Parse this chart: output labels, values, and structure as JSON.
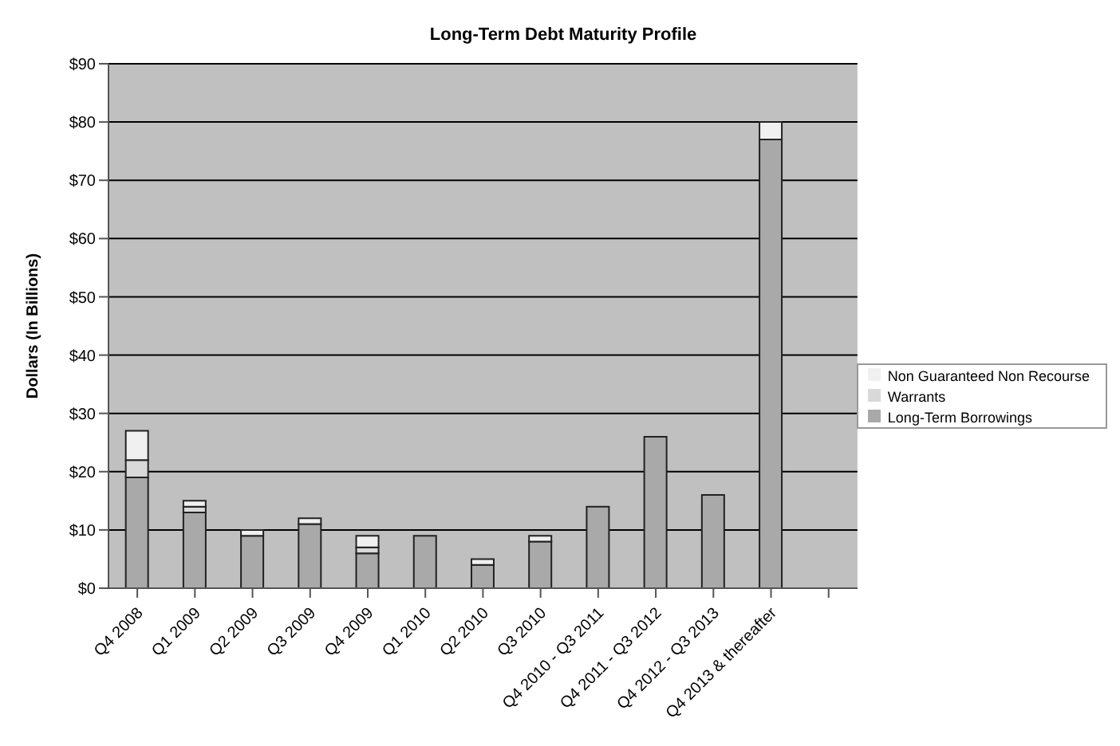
{
  "chart_data": {
    "type": "bar",
    "title": "Long-Term Debt Maturity Profile",
    "ylabel": "Dollars (In Billions)",
    "categories": [
      "Q4 2008",
      "Q1 2009",
      "Q2 2009",
      "Q3 2009",
      "Q4 2009",
      "Q1 2010",
      "Q2 2010",
      "Q3 2010",
      "Q4 2010 - Q3 2011",
      "Q4 2011 - Q3 2012",
      "Q4 2012 - Q3 2013",
      "Q4 2013 & thereafter",
      null
    ],
    "series": [
      {
        "name": "Long-Term Borrowings",
        "color": "#a9a9a9",
        "values": [
          19,
          13,
          9,
          11,
          6,
          9,
          4,
          8,
          14,
          26,
          16,
          77,
          null
        ]
      },
      {
        "name": "Warrants",
        "color": "#d9d9d9",
        "values": [
          3,
          1,
          0,
          0,
          1,
          0,
          0,
          0,
          0,
          0,
          0,
          0,
          null
        ]
      },
      {
        "name": "Non Guaranteed Non Recourse",
        "color": "#f0f0f0",
        "values": [
          5,
          1,
          1,
          1,
          2,
          0,
          1,
          1,
          0,
          0,
          0,
          3,
          null
        ]
      }
    ],
    "stacked": true,
    "ylim": [
      0,
      90
    ],
    "yticks": [
      {
        "value": 0,
        "label": "$0"
      },
      {
        "value": 10,
        "label": "$10"
      },
      {
        "value": 20,
        "label": "$20"
      },
      {
        "value": 30,
        "label": "$30"
      },
      {
        "value": 40,
        "label": "$40"
      },
      {
        "value": 50,
        "label": "$50"
      },
      {
        "value": 60,
        "label": "$60"
      },
      {
        "value": 70,
        "label": "$70"
      },
      {
        "value": 80,
        "label": "$80"
      },
      {
        "value": 90,
        "label": "$90"
      }
    ],
    "grid": "y",
    "legend": "right"
  }
}
